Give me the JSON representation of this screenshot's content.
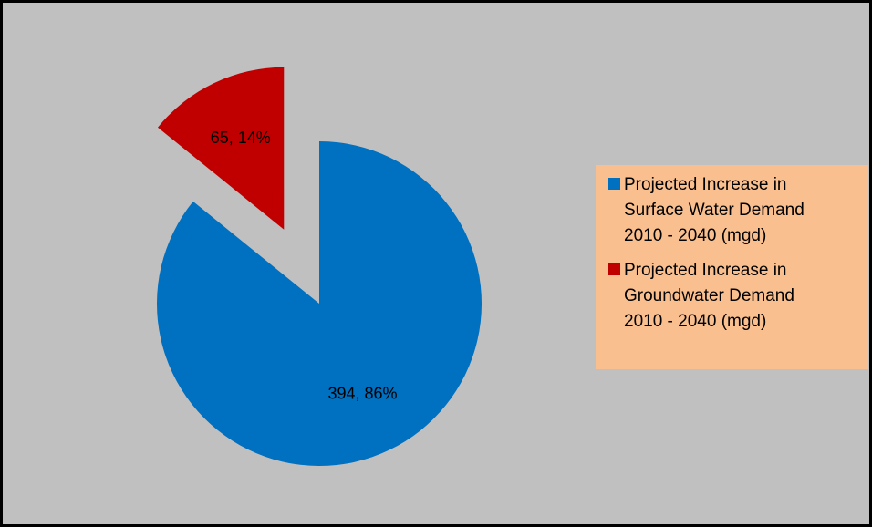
{
  "chart_data": {
    "type": "pie",
    "categories": [
      "Projected Increase in Surface Water Demand 2010 - 2040 (mgd)",
      "Projected Increase in Groundwater Demand 2010 - 2040 (mgd)"
    ],
    "values": [
      394,
      65
    ],
    "value_labels": [
      "394, 86%",
      "65, 14%"
    ],
    "colors": [
      "#0070c0",
      "#c00000"
    ],
    "exploded": [
      false,
      true
    ],
    "legend": "right"
  }
}
